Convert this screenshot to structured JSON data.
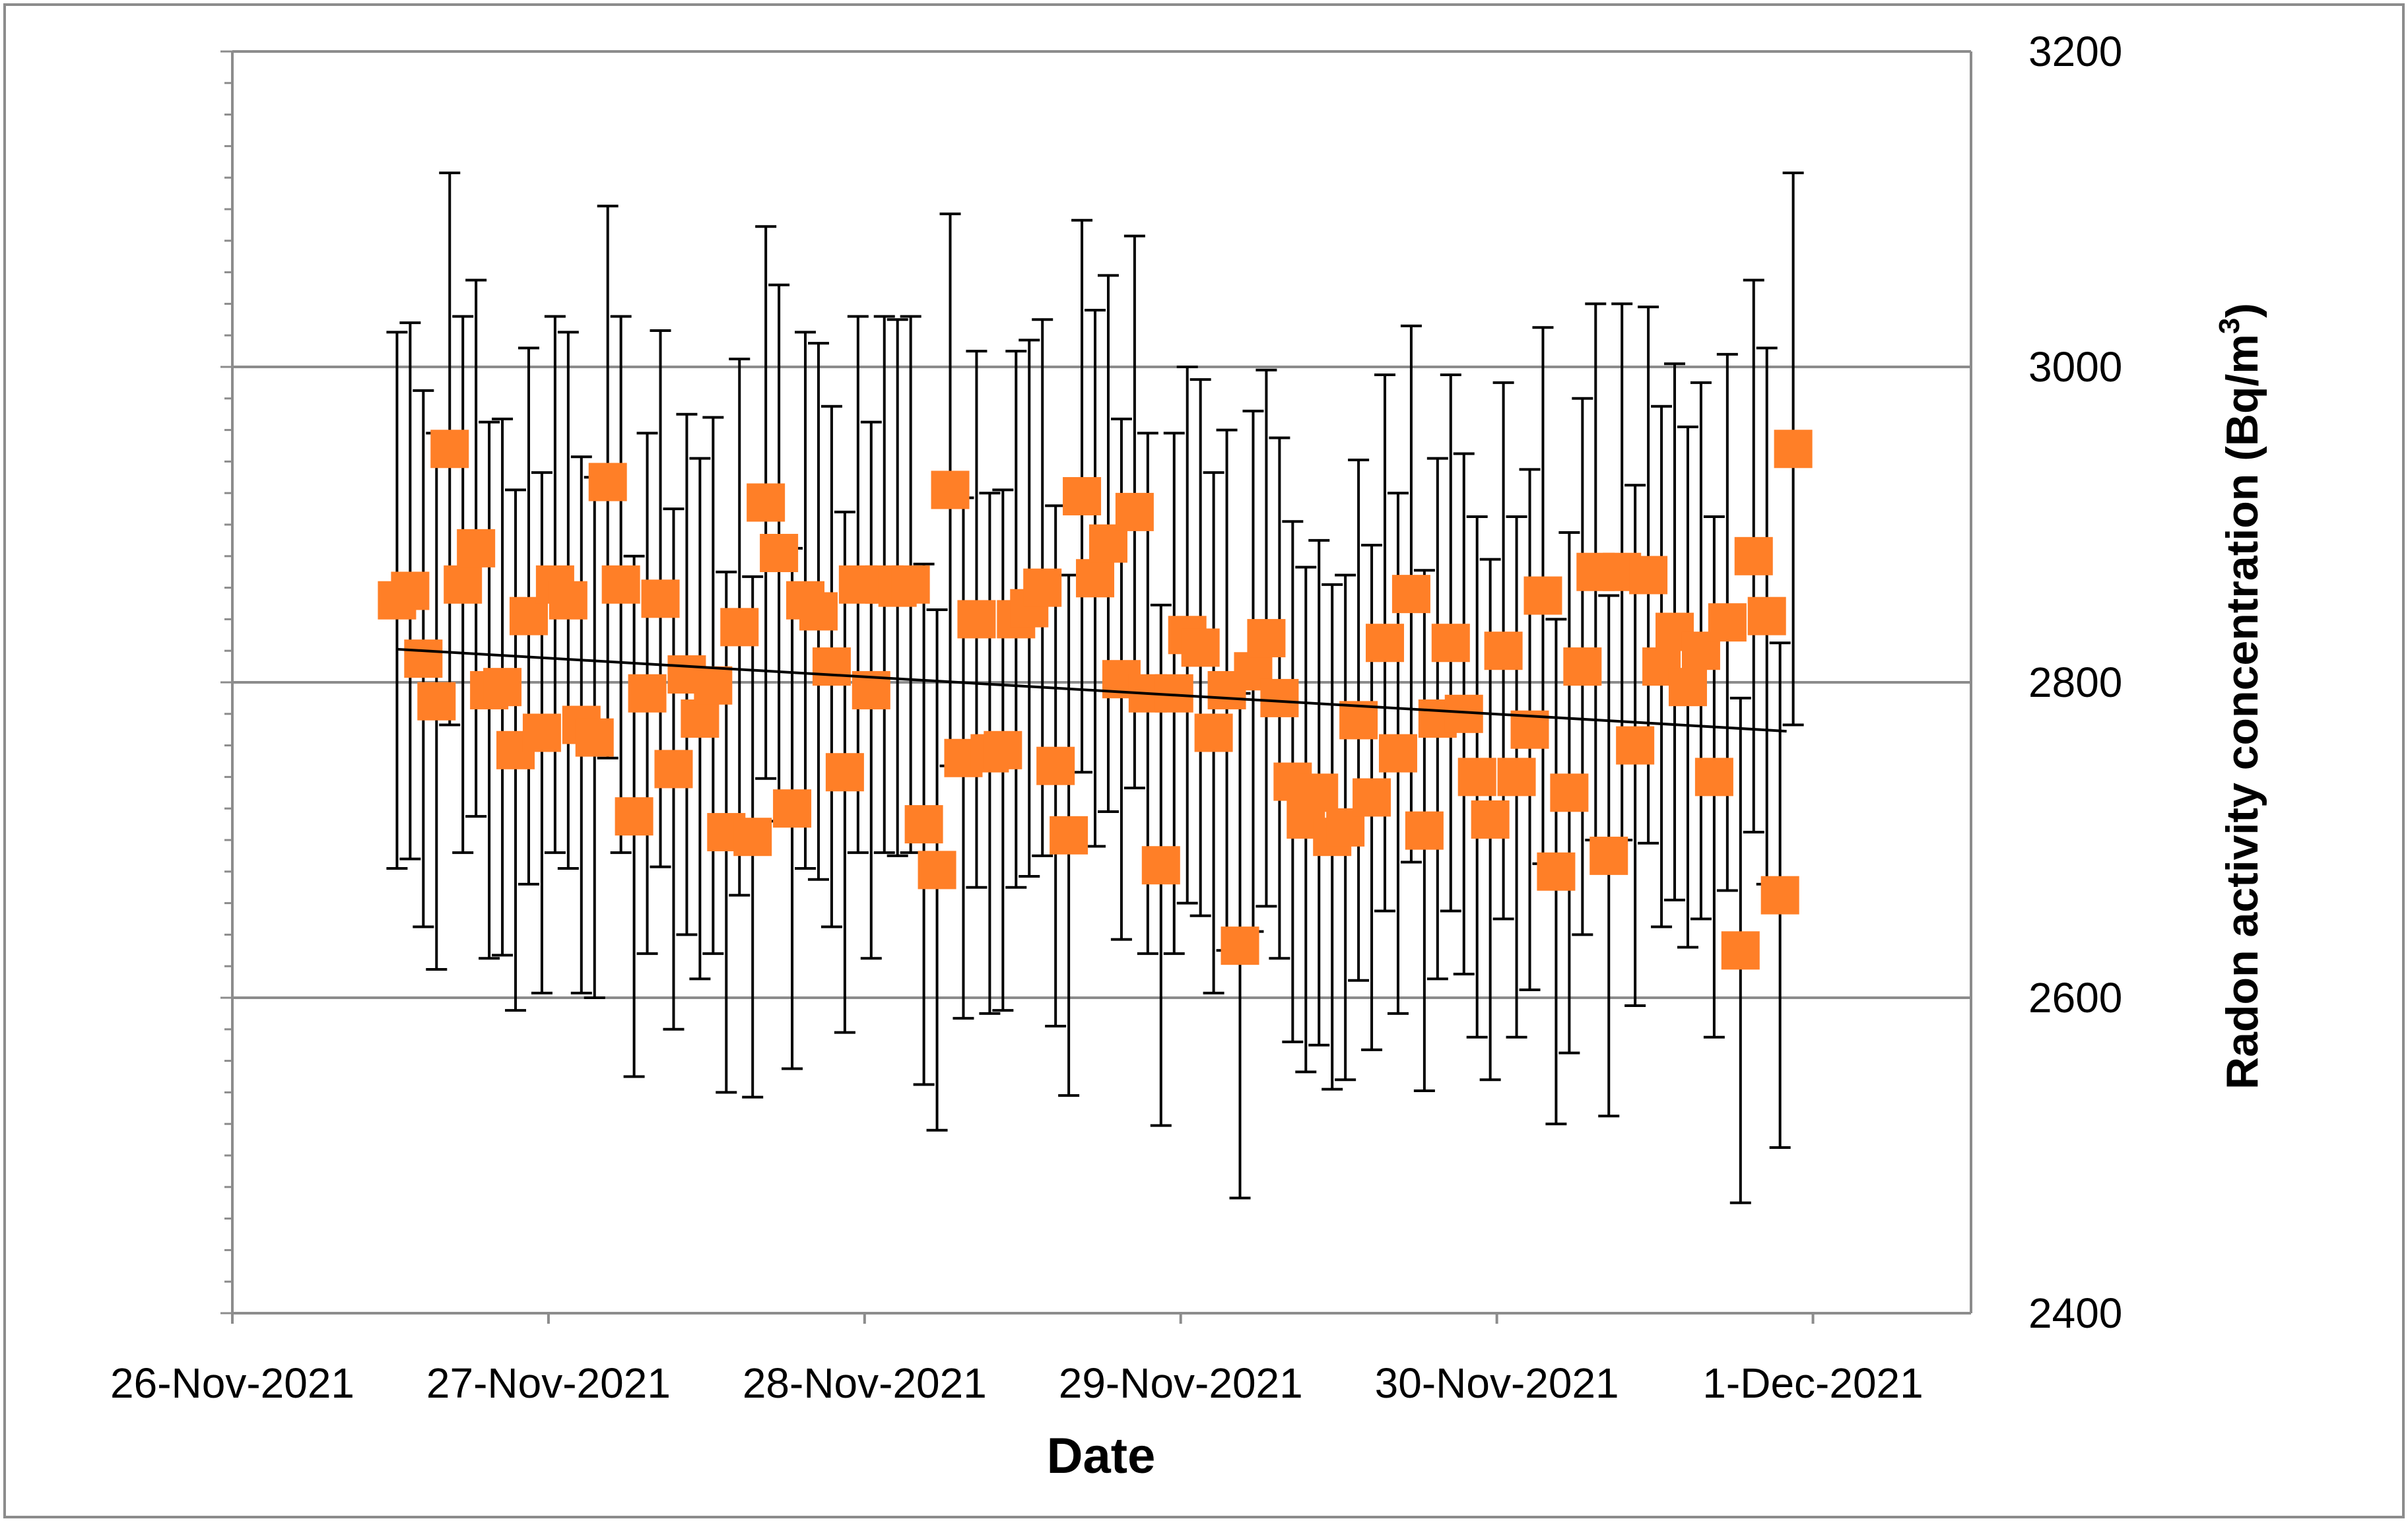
{
  "chart_data": {
    "type": "scatter",
    "title": "",
    "xlabel": "Date",
    "ylabel": "Radon activity concentration (Bq/m³)",
    "ylabel_main": "Radon activity concentration (Bq/m",
    "ylabel_sup": "3",
    "ylabel_close": ")",
    "y_axis_side": "right",
    "ylim": [
      2400,
      3200
    ],
    "yticks": [
      2400,
      2600,
      2800,
      3000,
      3200
    ],
    "ytick_labels": [
      "2400",
      "2600",
      "2800",
      "3000",
      "3200"
    ],
    "xlim": [
      "2021-11-26T00:00",
      "2021-12-01T12:00"
    ],
    "xticks": [
      "2021-11-26",
      "2021-11-27",
      "2021-11-28",
      "2021-11-29",
      "2021-11-30",
      "2021-12-01"
    ],
    "xtick_labels": [
      "26-Nov-2021",
      "27-Nov-2021",
      "28-Nov-2021",
      "29-Nov-2021",
      "30-Nov-2021",
      "1-Dec-2021"
    ],
    "grid": "horizontal major",
    "legend": "none",
    "marker": "square",
    "colors": {
      "marker": "#FF7F27",
      "error_bar": "#000000",
      "trendline": "#000000",
      "grid": "#8C8C8C",
      "frame": "#8C8C8C"
    },
    "trendline": {
      "type": "linear",
      "x": [
        "2021-11-26T12:30",
        "2021-11-30T22:00"
      ],
      "y": [
        2821,
        2769
      ]
    },
    "series": [
      {
        "x": [
          "2021-11-26T12:30",
          "2021-11-26T13:30",
          "2021-11-26T14:30",
          "2021-11-26T15:30",
          "2021-11-26T16:30",
          "2021-11-26T17:30",
          "2021-11-26T18:30",
          "2021-11-26T19:30",
          "2021-11-26T20:30",
          "2021-11-26T21:30",
          "2021-11-26T22:30",
          "2021-11-26T23:30",
          "2021-11-27T00:30",
          "2021-11-27T01:30",
          "2021-11-27T02:30",
          "2021-11-27T03:30",
          "2021-11-27T04:30",
          "2021-11-27T05:30",
          "2021-11-27T06:30",
          "2021-11-27T07:30",
          "2021-11-27T08:30",
          "2021-11-27T09:30",
          "2021-11-27T10:30",
          "2021-11-27T11:30",
          "2021-11-27T12:30",
          "2021-11-27T13:30",
          "2021-11-27T14:30",
          "2021-11-27T15:30",
          "2021-11-27T16:30",
          "2021-11-27T17:30",
          "2021-11-27T18:30",
          "2021-11-27T19:30",
          "2021-11-27T20:30",
          "2021-11-27T21:30",
          "2021-11-27T22:30",
          "2021-11-27T23:30",
          "2021-11-28T00:30",
          "2021-11-28T01:30",
          "2021-11-28T02:30",
          "2021-11-28T03:30",
          "2021-11-28T04:30",
          "2021-11-28T05:30",
          "2021-11-28T06:30",
          "2021-11-28T07:30",
          "2021-11-28T08:30",
          "2021-11-28T09:30",
          "2021-11-28T10:30",
          "2021-11-28T11:30",
          "2021-11-28T12:30",
          "2021-11-28T13:30",
          "2021-11-28T14:30",
          "2021-11-28T15:30",
          "2021-11-28T16:30",
          "2021-11-28T17:30",
          "2021-11-28T18:30",
          "2021-11-28T19:30",
          "2021-11-28T20:30",
          "2021-11-28T21:30",
          "2021-11-28T22:30",
          "2021-11-28T23:30",
          "2021-11-29T00:30",
          "2021-11-29T01:30",
          "2021-11-29T02:30",
          "2021-11-29T03:30",
          "2021-11-29T04:30",
          "2021-11-29T05:30",
          "2021-11-29T06:30",
          "2021-11-29T07:30",
          "2021-11-29T08:30",
          "2021-11-29T09:30",
          "2021-11-29T10:30",
          "2021-11-29T11:30",
          "2021-11-29T12:30",
          "2021-11-29T13:30",
          "2021-11-29T14:30",
          "2021-11-29T15:30",
          "2021-11-29T16:30",
          "2021-11-29T17:30",
          "2021-11-29T18:30",
          "2021-11-29T19:30",
          "2021-11-29T20:30",
          "2021-11-29T21:30",
          "2021-11-29T22:30",
          "2021-11-29T23:30",
          "2021-11-30T00:30",
          "2021-11-30T01:30",
          "2021-11-30T02:30",
          "2021-11-30T03:30",
          "2021-11-30T04:30",
          "2021-11-30T05:30",
          "2021-11-30T06:30",
          "2021-11-30T07:30",
          "2021-11-30T08:30",
          "2021-11-30T09:30",
          "2021-11-30T10:30",
          "2021-11-30T11:30",
          "2021-11-30T12:30",
          "2021-11-30T13:30",
          "2021-11-30T14:30",
          "2021-11-30T15:30",
          "2021-11-30T16:30",
          "2021-11-30T17:30",
          "2021-11-30T18:30",
          "2021-11-30T19:30",
          "2021-11-30T20:30",
          "2021-11-30T21:30",
          "2021-11-30T22:30"
        ],
        "y": [
          2852,
          2858,
          2815,
          2788,
          2948,
          2862,
          2885,
          2795,
          2797,
          2757,
          2842,
          2768,
          2862,
          2852,
          2773,
          2765,
          2927,
          2862,
          2715,
          2793,
          2853,
          2745,
          2805,
          2777,
          2798,
          2705,
          2835,
          2702,
          2914,
          2882,
          2720,
          2852,
          2845,
          2810,
          2743,
          2862,
          2795,
          2862,
          2860,
          2862,
          2710,
          2681,
          2922,
          2752,
          2840,
          2755,
          2757,
          2840,
          2847,
          2860,
          2747,
          2703,
          2918,
          2866,
          2888,
          2802,
          2908,
          2793,
          2684,
          2793,
          2830,
          2822,
          2768,
          2795,
          2633,
          2807,
          2828,
          2790,
          2737,
          2713,
          2730,
          2702,
          2708,
          2776,
          2727,
          2825,
          2755,
          2856,
          2706,
          2777,
          2825,
          2780,
          2740,
          2713,
          2820,
          2740,
          2770,
          2855,
          2680,
          2730,
          2810,
          2870,
          2690,
          2870,
          2760,
          2868,
          2810,
          2832,
          2797,
          2820,
          2740,
          2838,
          2630,
          2880,
          2842,
          2665,
          2948
        ],
        "y_err": [
          170,
          170,
          170,
          170,
          175,
          170,
          170,
          170,
          170,
          165,
          170,
          165,
          170,
          170,
          170,
          165,
          175,
          170,
          165,
          165,
          170,
          165,
          165,
          165,
          170,
          165,
          170,
          165,
          175,
          170,
          165,
          170,
          170,
          165,
          165,
          170,
          170,
          170,
          170,
          170,
          165,
          165,
          175,
          165,
          170,
          165,
          165,
          170,
          170,
          170,
          165,
          165,
          175,
          170,
          170,
          165,
          175,
          165,
          165,
          165,
          170,
          170,
          165,
          165,
          160,
          165,
          170,
          165,
          165,
          160,
          160,
          160,
          160,
          165,
          160,
          170,
          165,
          170,
          165,
          165,
          170,
          165,
          165,
          165,
          170,
          165,
          165,
          170,
          160,
          165,
          170,
          170,
          165,
          170,
          165,
          170,
          165,
          170,
          165,
          170,
          165,
          170,
          160,
          175,
          170,
          160,
          175
        ]
      }
    ]
  }
}
